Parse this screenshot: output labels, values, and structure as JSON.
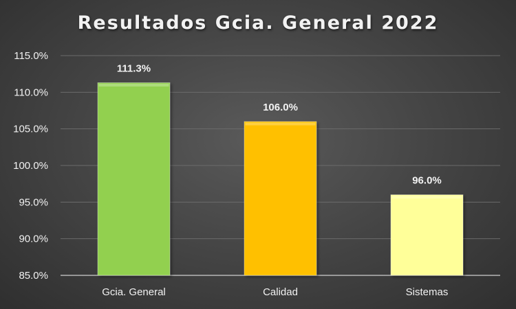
{
  "chart_data": {
    "type": "bar",
    "title": "Resultados Gcia. General 2022",
    "xlabel": "",
    "ylabel": "",
    "categories": [
      "Gcia. General",
      "Calidad",
      "Sistemas"
    ],
    "values": [
      111.3,
      106.0,
      96.0
    ],
    "value_labels": [
      "111.3%",
      "106.0%",
      "96.0%"
    ],
    "ylim": [
      85.0,
      115.0
    ],
    "yticks": [
      85.0,
      90.0,
      95.0,
      100.0,
      105.0,
      110.0,
      115.0
    ],
    "ytick_labels": [
      "85.0%",
      "90.0%",
      "95.0%",
      "100.0%",
      "105.0%",
      "110.0%",
      "115.0%"
    ],
    "grid": true,
    "legend": "none",
    "bar_colors": [
      "#92d050",
      "#ffc000",
      "#ffff99"
    ]
  },
  "colors": {
    "background": "#474747",
    "gridline": "#6b6b6b",
    "axis_text": "#f2f2f2",
    "data_label": "#f2f2f2"
  }
}
